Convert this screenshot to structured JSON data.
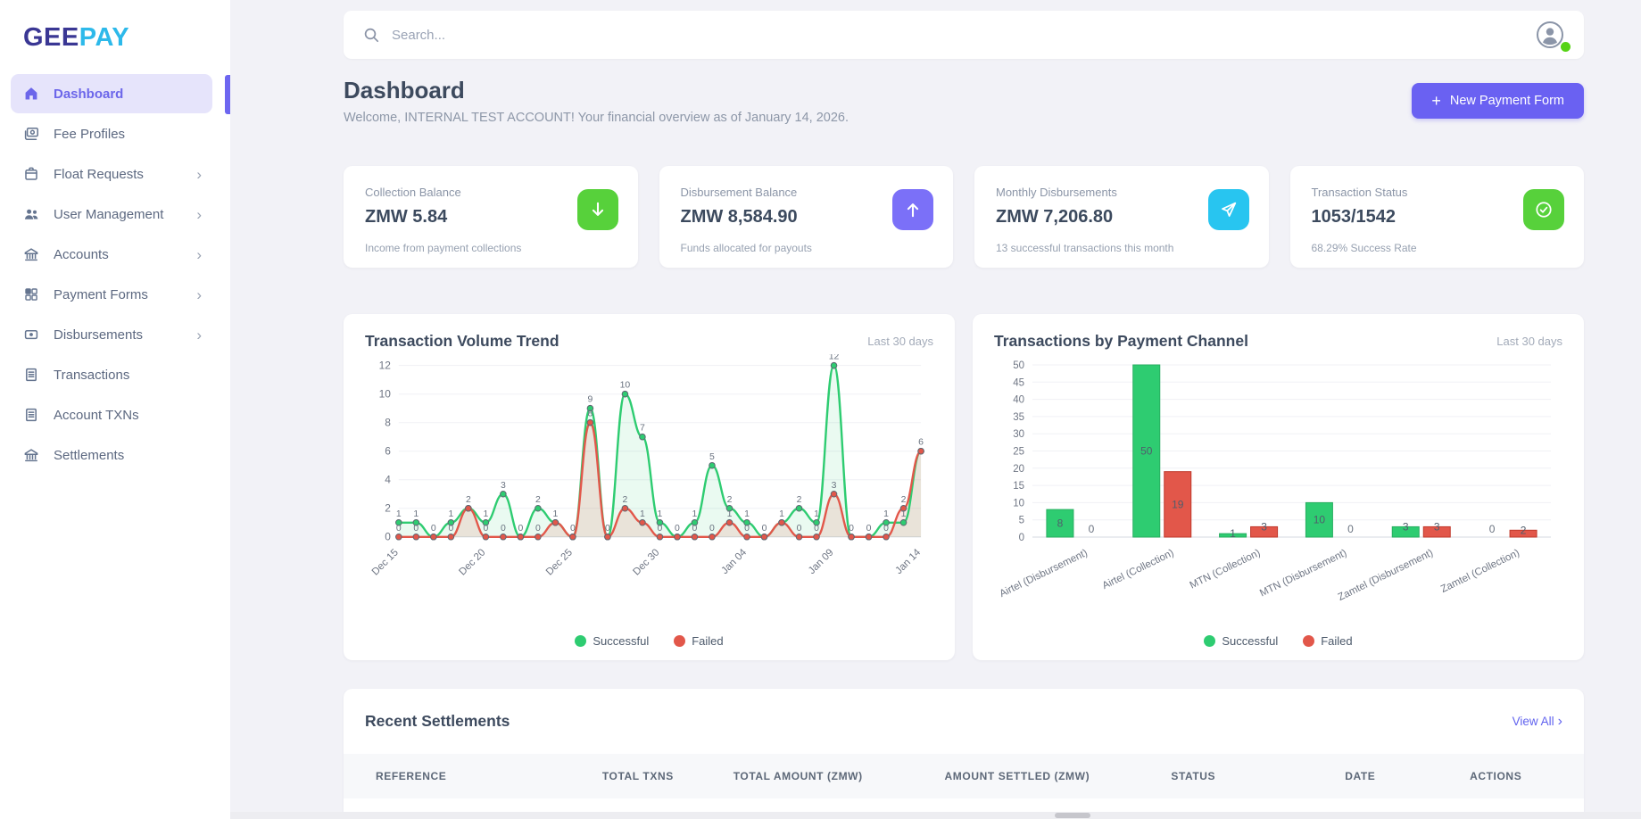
{
  "app": {
    "logo_primary": "GEE",
    "logo_secondary": "PAY"
  },
  "topbar": {
    "search_placeholder": "Search...",
    "avatar_icon": "user-avatar",
    "status_dot_color": "#56d315"
  },
  "sidebar": {
    "items": [
      {
        "label": "Dashboard",
        "icon": "home-icon",
        "active": true,
        "chevron": false
      },
      {
        "label": "Fee Profiles",
        "icon": "fee-profiles-icon",
        "active": false,
        "chevron": false
      },
      {
        "label": "Float Requests",
        "icon": "float-requests-icon",
        "active": false,
        "chevron": true
      },
      {
        "label": "User Management",
        "icon": "user-management-icon",
        "active": false,
        "chevron": true
      },
      {
        "label": "Accounts",
        "icon": "accounts-icon",
        "active": false,
        "chevron": true
      },
      {
        "label": "Payment Forms",
        "icon": "payment-forms-icon",
        "active": false,
        "chevron": true
      },
      {
        "label": "Disbursements",
        "icon": "disbursements-icon",
        "active": false,
        "chevron": true
      },
      {
        "label": "Transactions",
        "icon": "transactions-icon",
        "active": false,
        "chevron": false
      },
      {
        "label": "Account TXNs",
        "icon": "account-txns-icon",
        "active": false,
        "chevron": false
      },
      {
        "label": "Settlements",
        "icon": "settlements-icon",
        "active": false,
        "chevron": false
      }
    ]
  },
  "page": {
    "title": "Dashboard",
    "subtitle": "Welcome, INTERNAL TEST ACCOUNT! Your financial overview as of January 14, 2026.",
    "new_payment_button": "New Payment Form",
    "plus": "+"
  },
  "stat_cards": [
    {
      "label": "Collection Balance",
      "value": "ZMW 5.84",
      "description": "Income from payment collections",
      "icon": "arrow-down-icon",
      "icon_bg": "#57d13b"
    },
    {
      "label": "Disbursement Balance",
      "value": "ZMW 8,584.90",
      "description": "Funds allocated for payouts",
      "icon": "arrow-up-icon",
      "icon_bg": "#7b70f8"
    },
    {
      "label": "Monthly Disbursements",
      "value": "ZMW 7,206.80",
      "description": "13 successful transactions this month",
      "icon": "paper-plane-icon",
      "icon_bg": "#28c5f0"
    },
    {
      "label": "Transaction Status",
      "value": "1053/1542",
      "description": "68.29% Success Rate",
      "icon": "check-circle-icon",
      "icon_bg": "#57d13b"
    }
  ],
  "chart_data": [
    {
      "type": "line",
      "title": "Transaction Volume Trend",
      "period": "Last 30 days",
      "x": [
        "Dec 15",
        "Dec 16",
        "Dec 17",
        "Dec 18",
        "Dec 19",
        "Dec 20",
        "Dec 21",
        "Dec 22",
        "Dec 23",
        "Dec 24",
        "Dec 25",
        "Dec 26",
        "Dec 27",
        "Dec 28",
        "Dec 29",
        "Dec 30",
        "Dec 31",
        "Jan 01",
        "Jan 02",
        "Jan 03",
        "Jan 04",
        "Jan 05",
        "Jan 06",
        "Jan 07",
        "Jan 08",
        "Jan 09",
        "Jan 10",
        "Jan 11",
        "Jan 12",
        "Jan 13",
        "Jan 14"
      ],
      "x_tick_every": 5,
      "series": [
        {
          "name": "Successful",
          "color": "#2ecc71",
          "fill": "rgba(46,204,113,0.10)",
          "values": [
            1,
            1,
            0,
            1,
            2,
            1,
            3,
            0,
            2,
            1,
            0,
            9,
            0,
            10,
            7,
            1,
            0,
            1,
            5,
            2,
            1,
            0,
            1,
            2,
            1,
            12,
            0,
            0,
            1,
            1,
            6
          ]
        },
        {
          "name": "Failed",
          "color": "#e2574a",
          "fill": "rgba(231,76,60,0.13)",
          "values": [
            0,
            0,
            0,
            0,
            2,
            0,
            0,
            0,
            0,
            1,
            0,
            8,
            0,
            2,
            1,
            0,
            0,
            0,
            0,
            1,
            0,
            0,
            1,
            0,
            0,
            3,
            0,
            0,
            0,
            2,
            6
          ]
        }
      ],
      "ylim": [
        0,
        12
      ],
      "yticks": [
        0,
        2,
        4,
        6,
        8,
        10,
        12
      ],
      "grid": true,
      "legend_position": "bottom"
    },
    {
      "type": "bar",
      "title": "Transactions by Payment Channel",
      "period": "Last 30 days",
      "categories": [
        "Airtel (Disbursement)",
        "Airtel (Collection)",
        "MTN (Collection)",
        "MTN (Disbursement)",
        "Zamtel (Disbursement)",
        "Zamtel (Collection)"
      ],
      "series": [
        {
          "name": "Successful",
          "color": "#2ecc71",
          "border": "#27ae60",
          "values": [
            8,
            50,
            1,
            10,
            3,
            0
          ]
        },
        {
          "name": "Failed",
          "color": "#e2574a",
          "border": "#c0392b",
          "values": [
            0,
            19,
            3,
            0,
            3,
            2
          ]
        }
      ],
      "ylim": [
        0,
        50
      ],
      "yticks": [
        0,
        5,
        10,
        15,
        20,
        25,
        30,
        35,
        40,
        45,
        50
      ],
      "grid": true,
      "legend_position": "bottom"
    }
  ],
  "settlements": {
    "title": "Recent Settlements",
    "view_all": "View All",
    "view_all_chevron": "›",
    "columns": [
      "REFERENCE",
      "TOTAL TXNS",
      "TOTAL AMOUNT (ZMW)",
      "AMOUNT SETTLED (ZMW)",
      "STATUS",
      "DATE",
      "ACTIONS"
    ],
    "rows": []
  },
  "colors": {
    "accent": "#6a61f2",
    "success": "#2ecc71",
    "failed": "#e2574a",
    "page_bg": "#f2f2f7"
  }
}
